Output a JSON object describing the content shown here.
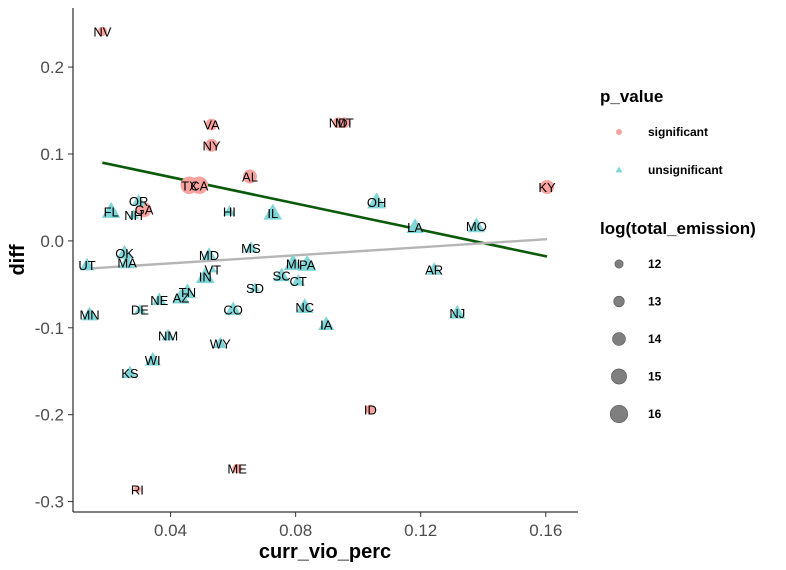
{
  "chart_data": {
    "type": "scatter",
    "title": "",
    "xlabel": "curr_vio_perc",
    "ylabel": "diff",
    "xlim": [
      0.0088,
      0.1703
    ],
    "ylim": [
      -0.312,
      0.268
    ],
    "x_ticks": [
      0.04,
      0.08,
      0.12,
      0.16
    ],
    "x_tick_labels": [
      "0.04",
      "0.08",
      "0.12",
      "0.16"
    ],
    "y_ticks": [
      0.2,
      0.1,
      0.0,
      -0.1,
      -0.2,
      -0.3
    ],
    "y_tick_labels": [
      "0.2",
      "0.1",
      "0.0",
      "-0.1",
      "-0.2",
      "-0.3"
    ],
    "grid": false,
    "colors": {
      "significant": "#f8a3a0",
      "unsignificant": "#7fd6d6",
      "trend_green": "#0b5a0b",
      "trend_gray": "#b5b5b5"
    },
    "trend_lines": [
      {
        "color": "trend_green",
        "x": [
          0.0182,
          0.1604
        ],
        "y": [
          0.09,
          -0.018
        ]
      },
      {
        "color": "trend_gray",
        "x": [
          0.0133,
          0.1604
        ],
        "y": [
          -0.032,
          0.002
        ]
      }
    ],
    "points": [
      {
        "label": "NV",
        "x": 0.0182,
        "y": 0.241,
        "group": "significant",
        "size": 12.5
      },
      {
        "label": "VA",
        "x": 0.0531,
        "y": 0.134,
        "group": "significant",
        "size": 13.5
      },
      {
        "label": "NY",
        "x": 0.0531,
        "y": 0.11,
        "group": "significant",
        "size": 14
      },
      {
        "label": "ND",
        "x": 0.0936,
        "y": 0.136,
        "group": "significant",
        "size": 13
      },
      {
        "label": "MT",
        "x": 0.0956,
        "y": 0.136,
        "group": "significant",
        "size": 13
      },
      {
        "label": "AL",
        "x": 0.0654,
        "y": 0.074,
        "group": "significant",
        "size": 14.5
      },
      {
        "label": "TX",
        "x": 0.046,
        "y": 0.064,
        "group": "significant",
        "size": 16
      },
      {
        "label": "CA",
        "x": 0.0492,
        "y": 0.064,
        "group": "significant",
        "size": 16
      },
      {
        "label": "KY",
        "x": 0.1604,
        "y": 0.062,
        "group": "significant",
        "size": 14.5
      },
      {
        "label": "GA",
        "x": 0.0315,
        "y": 0.036,
        "group": "significant",
        "size": 15
      },
      {
        "label": "ID",
        "x": 0.1039,
        "y": -0.194,
        "group": "significant",
        "size": 12.5
      },
      {
        "label": "ME",
        "x": 0.0613,
        "y": -0.262,
        "group": "significant",
        "size": 12.5
      },
      {
        "label": "RI",
        "x": 0.0294,
        "y": -0.286,
        "group": "significant",
        "size": 11.5
      },
      {
        "label": "OR",
        "x": 0.0298,
        "y": 0.046,
        "group": "unsignificant",
        "size": 13.5
      },
      {
        "label": "FL",
        "x": 0.021,
        "y": 0.034,
        "group": "unsignificant",
        "size": 15.5
      },
      {
        "label": "NH",
        "x": 0.0282,
        "y": 0.03,
        "group": "unsignificant",
        "size": 12.5
      },
      {
        "label": "HI",
        "x": 0.0588,
        "y": 0.034,
        "group": "unsignificant",
        "size": 13
      },
      {
        "label": "IL",
        "x": 0.0727,
        "y": 0.032,
        "group": "unsignificant",
        "size": 15.5
      },
      {
        "label": "OH",
        "x": 0.1059,
        "y": 0.045,
        "group": "unsignificant",
        "size": 15.5
      },
      {
        "label": "LA",
        "x": 0.1182,
        "y": 0.016,
        "group": "unsignificant",
        "size": 15
      },
      {
        "label": "MO",
        "x": 0.1378,
        "y": 0.017,
        "group": "unsignificant",
        "size": 15
      },
      {
        "label": "OK",
        "x": 0.0253,
        "y": -0.014,
        "group": "unsignificant",
        "size": 14.5
      },
      {
        "label": "MA",
        "x": 0.0261,
        "y": -0.025,
        "group": "unsignificant",
        "size": 14.5
      },
      {
        "label": "UT",
        "x": 0.0133,
        "y": -0.028,
        "group": "unsignificant",
        "size": 14
      },
      {
        "label": "MD",
        "x": 0.0523,
        "y": -0.016,
        "group": "unsignificant",
        "size": 14
      },
      {
        "label": "MS",
        "x": 0.0657,
        "y": -0.008,
        "group": "unsignificant",
        "size": 13.5
      },
      {
        "label": "VT",
        "x": 0.0535,
        "y": -0.033,
        "group": "unsignificant",
        "size": 11.5
      },
      {
        "label": "IN",
        "x": 0.0511,
        "y": -0.041,
        "group": "unsignificant",
        "size": 15.5
      },
      {
        "label": "MI",
        "x": 0.0792,
        "y": -0.026,
        "group": "unsignificant",
        "size": 15.5
      },
      {
        "label": "PA",
        "x": 0.0837,
        "y": -0.027,
        "group": "unsignificant",
        "size": 15.5
      },
      {
        "label": "SC",
        "x": 0.0755,
        "y": -0.04,
        "group": "unsignificant",
        "size": 14.5
      },
      {
        "label": "CT",
        "x": 0.0808,
        "y": -0.046,
        "group": "unsignificant",
        "size": 13.5
      },
      {
        "label": "AR",
        "x": 0.1243,
        "y": -0.033,
        "group": "unsignificant",
        "size": 14
      },
      {
        "label": "SD",
        "x": 0.067,
        "y": -0.054,
        "group": "unsignificant",
        "size": 12.5
      },
      {
        "label": "TN",
        "x": 0.0454,
        "y": -0.059,
        "group": "unsignificant",
        "size": 15
      },
      {
        "label": "AZ",
        "x": 0.0433,
        "y": -0.065,
        "group": "unsignificant",
        "size": 15
      },
      {
        "label": "NE",
        "x": 0.0364,
        "y": -0.068,
        "group": "unsignificant",
        "size": 14
      },
      {
        "label": "DE",
        "x": 0.0302,
        "y": -0.079,
        "group": "unsignificant",
        "size": 12.5
      },
      {
        "label": "CO",
        "x": 0.06,
        "y": -0.079,
        "group": "unsignificant",
        "size": 14.5
      },
      {
        "label": "NC",
        "x": 0.0829,
        "y": -0.076,
        "group": "unsignificant",
        "size": 15
      },
      {
        "label": "NJ",
        "x": 0.1317,
        "y": -0.083,
        "group": "unsignificant",
        "size": 14.5
      },
      {
        "label": "MN",
        "x": 0.0141,
        "y": -0.085,
        "group": "unsignificant",
        "size": 14.5
      },
      {
        "label": "IA",
        "x": 0.0898,
        "y": -0.096,
        "group": "unsignificant",
        "size": 14.5
      },
      {
        "label": "NM",
        "x": 0.0392,
        "y": -0.109,
        "group": "unsignificant",
        "size": 13.5
      },
      {
        "label": "WY",
        "x": 0.0559,
        "y": -0.118,
        "group": "unsignificant",
        "size": 13.5
      },
      {
        "label": "WI",
        "x": 0.0343,
        "y": -0.137,
        "group": "unsignificant",
        "size": 14.5
      },
      {
        "label": "KS",
        "x": 0.027,
        "y": -0.152,
        "group": "unsignificant",
        "size": 14
      }
    ],
    "legend": {
      "placement": "right",
      "color_title": "p_value",
      "color_items": [
        {
          "key": "significant",
          "label": "significant"
        },
        {
          "key": "unsignificant",
          "label": "unsignificant"
        }
      ],
      "size_title": "log(total_emission)",
      "size_items": [
        {
          "value": 12,
          "label": "12"
        },
        {
          "value": 13,
          "label": "13"
        },
        {
          "value": 14,
          "label": "14"
        },
        {
          "value": 15,
          "label": "15"
        },
        {
          "value": 16,
          "label": "16"
        }
      ]
    }
  }
}
